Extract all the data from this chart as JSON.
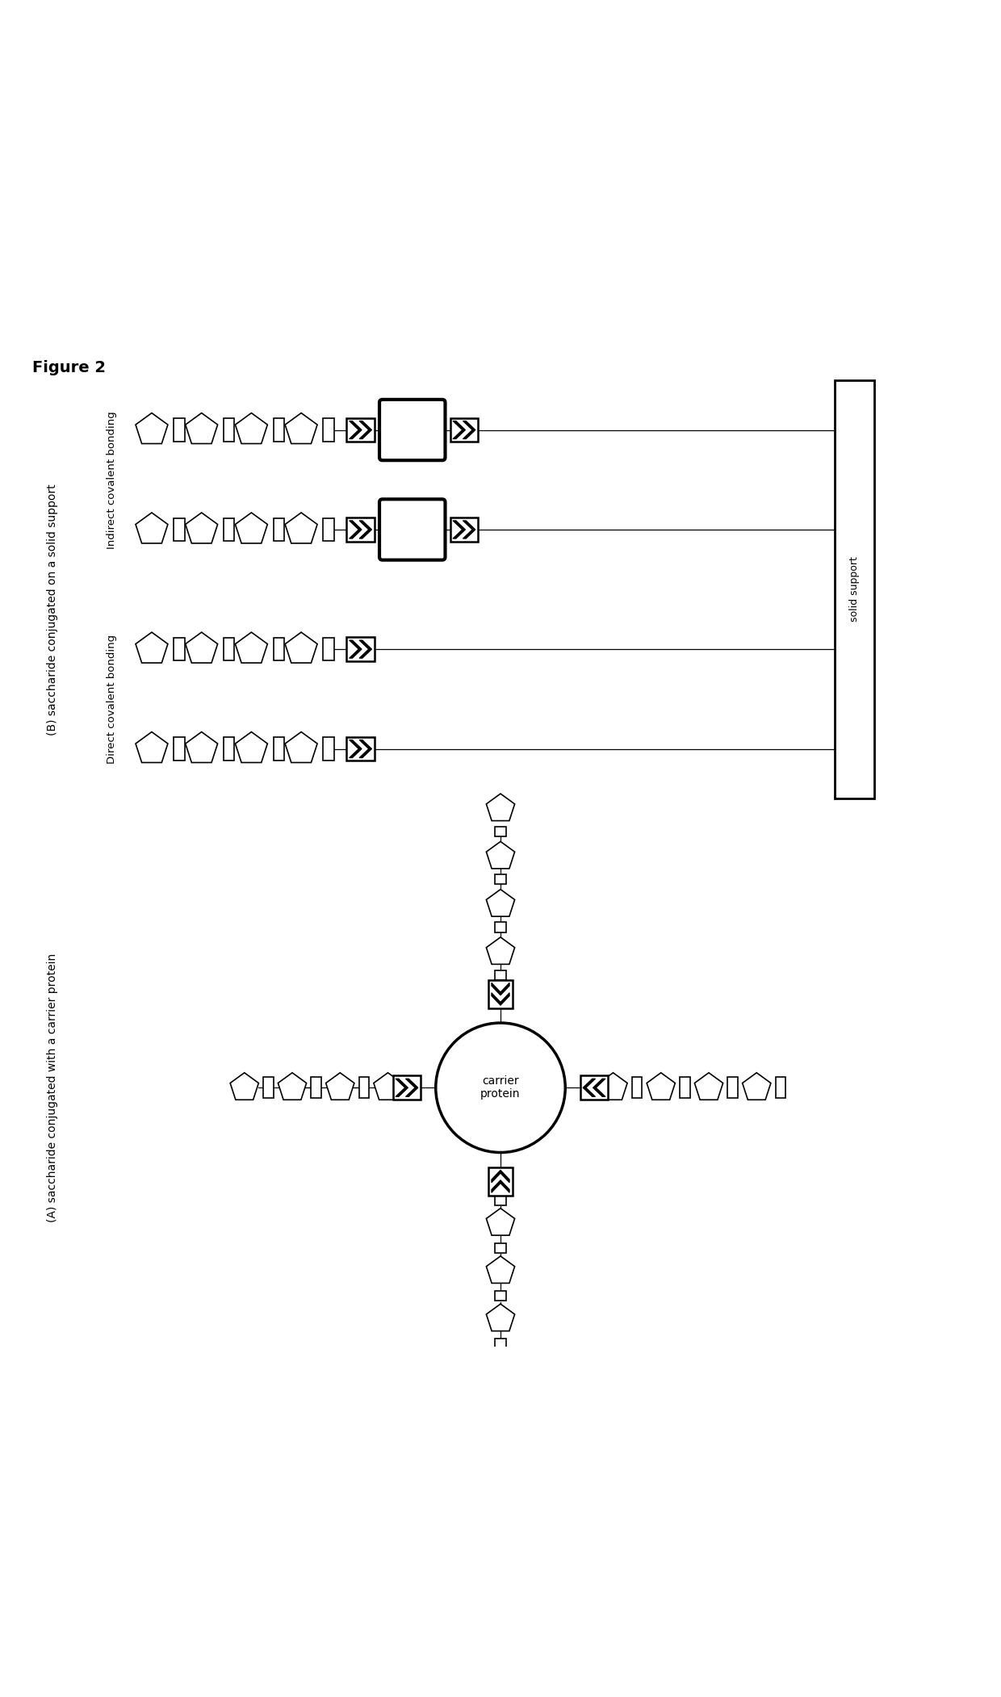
{
  "figure_title": "Figure 2",
  "panel_A_label": "(A) saccharide conjugated with a carrier protein",
  "panel_B_label": "(B) saccharide conjugated on a solid support",
  "label_indirect": "Indirect covalent bonding",
  "label_direct": "Direct covalent bonding",
  "label_solid_support": "solid support",
  "bg_color": "#ffffff",
  "line_color": "#000000",
  "shape_edge_color": "#000000",
  "shape_face_color": "#ffffff"
}
